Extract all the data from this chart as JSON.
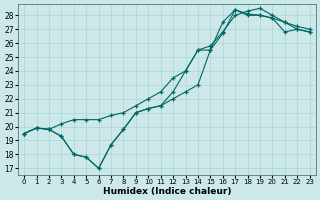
{
  "xlabel": "Humidex (Indice chaleur)",
  "xlim": [
    -0.5,
    23.5
  ],
  "ylim": [
    16.5,
    28.8
  ],
  "xticks": [
    0,
    1,
    2,
    3,
    4,
    5,
    6,
    7,
    8,
    9,
    10,
    11,
    12,
    13,
    14,
    15,
    16,
    17,
    18,
    19,
    20,
    21,
    22,
    23
  ],
  "yticks": [
    17,
    18,
    19,
    20,
    21,
    22,
    23,
    24,
    25,
    26,
    27,
    28
  ],
  "background_color": "#cce8e8",
  "grid_color": "#aad4d4",
  "line_color": "#006666",
  "line1_x": [
    0,
    1,
    2,
    3,
    4,
    5,
    6,
    7,
    8,
    9,
    10,
    11,
    12,
    13,
    14,
    15,
    16,
    17,
    18,
    19,
    20,
    21,
    22,
    23
  ],
  "line1_y": [
    19.5,
    19.9,
    19.8,
    19.3,
    18.0,
    17.8,
    17.0,
    18.7,
    19.8,
    21.0,
    21.3,
    21.5,
    22.0,
    22.5,
    23.0,
    25.5,
    26.7,
    28.4,
    28.0,
    28.0,
    27.8,
    26.8,
    27.0,
    26.8
  ],
  "line2_x": [
    0,
    1,
    2,
    3,
    4,
    5,
    6,
    7,
    8,
    9,
    10,
    11,
    12,
    13,
    14,
    15,
    16,
    17,
    18,
    19,
    20,
    21,
    22,
    23
  ],
  "line2_y": [
    19.5,
    19.9,
    19.8,
    20.2,
    20.5,
    20.5,
    20.5,
    20.8,
    21.0,
    21.5,
    22.0,
    22.5,
    23.5,
    24.0,
    25.5,
    25.8,
    26.8,
    28.0,
    28.3,
    28.5,
    28.0,
    27.5,
    27.2,
    27.0
  ],
  "line3_x": [
    0,
    1,
    2,
    3,
    4,
    5,
    6,
    7,
    8,
    9,
    10,
    11,
    12,
    13,
    14,
    15,
    16,
    17,
    18,
    19,
    20,
    21,
    22,
    23
  ],
  "line3_y": [
    19.5,
    19.9,
    19.8,
    19.3,
    18.0,
    17.8,
    17.0,
    18.7,
    19.8,
    21.0,
    21.3,
    21.5,
    22.5,
    24.0,
    25.5,
    25.5,
    27.5,
    28.4,
    28.1,
    28.0,
    27.8,
    27.5,
    27.0,
    26.8
  ]
}
